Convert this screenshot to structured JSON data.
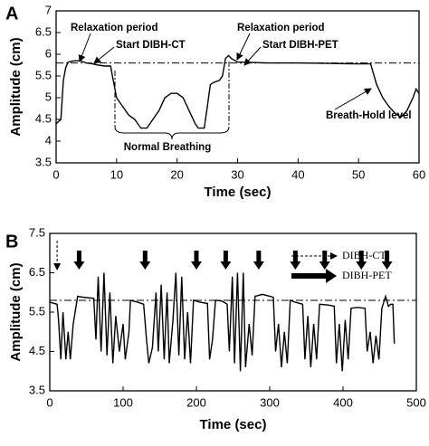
{
  "chart_data": [
    {
      "type": "line",
      "label": "A",
      "xlabel": "Time (sec)",
      "ylabel": "Amplitude (cm)",
      "color": "#000000",
      "xlim": [
        0,
        60
      ],
      "xticks": [
        0,
        10,
        20,
        30,
        40,
        50,
        60
      ],
      "ylim": [
        3.5,
        7
      ],
      "yticks": [
        3.5,
        4,
        4.5,
        5,
        5.5,
        6,
        6.5,
        7
      ],
      "reference_line": 5.8,
      "annotations": [
        "Relaxation period",
        "Start DIBH-CT",
        "Relaxation period",
        "Start DIBH-PET",
        "Normal Breathing",
        "Breath-Hold level"
      ],
      "x": [
        0,
        0.8,
        1.2,
        1.6,
        2,
        3,
        4,
        5,
        6,
        7,
        8,
        9,
        9.3,
        10,
        11,
        12,
        13,
        14,
        15,
        16,
        17,
        18,
        19,
        20,
        21,
        22,
        23,
        23.5,
        24.5,
        25,
        25.5,
        26,
        27,
        27.5,
        28,
        28.5,
        29,
        30,
        35,
        40,
        45,
        50,
        52,
        53,
        54,
        55,
        56,
        57,
        58,
        59,
        59.5,
        60
      ],
      "values": [
        4.4,
        4.5,
        5.4,
        5.7,
        5.82,
        5.85,
        5.85,
        5.8,
        5.78,
        5.75,
        5.73,
        5.73,
        5.5,
        5.0,
        4.8,
        4.6,
        4.5,
        4.3,
        4.3,
        4.5,
        4.7,
        5.0,
        5.1,
        5.1,
        5.0,
        4.7,
        4.4,
        4.3,
        4.3,
        4.8,
        5.3,
        5.35,
        5.4,
        5.5,
        5.9,
        5.97,
        5.9,
        5.82,
        5.8,
        5.8,
        5.79,
        5.78,
        5.78,
        5.3,
        5.0,
        4.8,
        4.65,
        4.55,
        4.7,
        5.0,
        5.2,
        5.1
      ]
    },
    {
      "type": "line",
      "label": "B",
      "xlabel": "Time (sec)",
      "ylabel": "Amplitude (cm)",
      "color": "#000000",
      "xlim": [
        0,
        500
      ],
      "xticks": [
        0,
        100,
        200,
        300,
        400,
        500
      ],
      "ylim": [
        3.5,
        7.5
      ],
      "yticks": [
        3.5,
        4.5,
        5.5,
        6.5,
        7.5
      ],
      "reference_line": 5.8,
      "legend": [
        "DIBH-CT",
        "DIBH-PET"
      ],
      "dibh_ct_arrows": [
        10
      ],
      "dibh_pet_arrows": [
        40,
        130,
        200,
        240,
        285,
        335,
        375,
        425,
        460
      ],
      "x": [
        0,
        10,
        12,
        15,
        18,
        22,
        25,
        28,
        32,
        38,
        45,
        60,
        63,
        66,
        70,
        74,
        78,
        82,
        86,
        90,
        95,
        100,
        103,
        108,
        110,
        120,
        128,
        132,
        135,
        140,
        145,
        148,
        152,
        156,
        160,
        163,
        168,
        172,
        176,
        180,
        184,
        188,
        192,
        196,
        205,
        215,
        218,
        222,
        226,
        235,
        242,
        245,
        249,
        252,
        256,
        260,
        264,
        267,
        272,
        276,
        280,
        290,
        305,
        308,
        312,
        316,
        320,
        324,
        328,
        335,
        345,
        348,
        352,
        356,
        360,
        364,
        368,
        380,
        388,
        391,
        395,
        399,
        403,
        407,
        411,
        420,
        430,
        433,
        437,
        441,
        445,
        449,
        453,
        458,
        462,
        465,
        468,
        470
      ],
      "values": [
        5.75,
        5.7,
        5.3,
        4.3,
        5.5,
        4.3,
        5.0,
        4.3,
        5.2,
        5.9,
        5.88,
        5.85,
        4.8,
        6.4,
        4.5,
        6.5,
        4.4,
        6.0,
        4.2,
        5.4,
        4.5,
        5.2,
        4.3,
        5.0,
        5.8,
        5.75,
        5.7,
        4.8,
        4.2,
        4.6,
        6.0,
        4.5,
        6.2,
        4.3,
        6.0,
        4.2,
        5.3,
        6.5,
        4.4,
        6.4,
        4.3,
        5.5,
        4.2,
        5.8,
        5.75,
        5.72,
        4.3,
        4.8,
        5.8,
        5.78,
        5.7,
        4.5,
        6.4,
        4.2,
        6.5,
        4.0,
        6.5,
        4.1,
        5.2,
        4.4,
        5.9,
        5.95,
        5.88,
        4.5,
        5.2,
        4.1,
        5.0,
        4.2,
        5.8,
        5.75,
        5.7,
        4.3,
        5.4,
        4.1,
        5.2,
        4.3,
        5.7,
        5.68,
        5.65,
        4.2,
        5.2,
        4.0,
        5.3,
        4.3,
        5.6,
        5.62,
        5.6,
        4.5,
        5.0,
        4.2,
        4.9,
        4.3,
        5.6,
        5.9,
        5.65,
        5.7,
        5.7,
        4.7
      ]
    }
  ]
}
